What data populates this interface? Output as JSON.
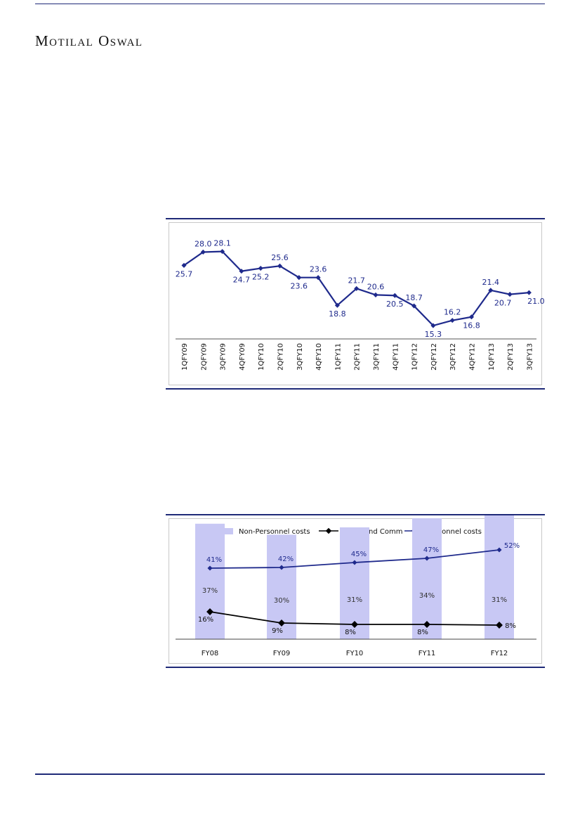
{
  "header": {
    "brand": "Motilal Oswal"
  },
  "chart_data": [
    {
      "type": "line",
      "categories": [
        "1QFY09",
        "2QFY09",
        "3QFY09",
        "4QFY09",
        "1QFY10",
        "2QFY10",
        "3QFY10",
        "4QFY10",
        "1QFY11",
        "2QFY11",
        "3QFY11",
        "4QFY11",
        "1QFY12",
        "2QFY12",
        "3QFY12",
        "4QFY12",
        "1QFY13",
        "2QFY13",
        "3QFY13"
      ],
      "values": [
        25.7,
        28.0,
        28.1,
        24.7,
        25.2,
        25.6,
        23.6,
        23.6,
        18.8,
        21.7,
        20.6,
        20.5,
        18.7,
        15.3,
        16.2,
        16.8,
        21.4,
        20.7,
        21.0
      ],
      "labels": [
        "25.7",
        "28.0",
        "28.1",
        "24.7",
        "25.2",
        "25.6",
        "23.6",
        "23.6",
        "18.8",
        "21.7",
        "20.6",
        "20.5",
        "18.7",
        "15.3",
        "16.2",
        "16.8",
        "21.4",
        "20.7",
        "21.0"
      ],
      "ylim": [
        13,
        30
      ],
      "color": "#1f2a8c",
      "grid": false
    },
    {
      "type": "bar+line",
      "categories": [
        "FY08",
        "FY09",
        "FY10",
        "FY11",
        "FY12"
      ],
      "legend": [
        "Non-Personnel costs",
        "Travel and Comm",
        "Personnel costs"
      ],
      "legend_position": "top",
      "series": [
        {
          "name": "Non-Personnel costs",
          "type": "bar",
          "values": [
            37,
            30,
            31,
            34,
            31
          ],
          "labels": [
            "37%",
            "30%",
            "31%",
            "34%",
            "31%"
          ],
          "color": "#c8c8f4"
        },
        {
          "name": "Travel and Comm",
          "type": "line",
          "values": [
            16,
            9,
            8,
            8,
            8
          ],
          "labels": [
            "16%",
            "9%",
            "8%",
            "8%",
            "8%"
          ],
          "color": "#000000"
        },
        {
          "name": "Personnel costs",
          "type": "line",
          "values": [
            41,
            42,
            45,
            47,
            52
          ],
          "labels": [
            "41%",
            "42%",
            "45%",
            "47%",
            "52%"
          ],
          "color": "#1f2a8c"
        }
      ]
    }
  ]
}
